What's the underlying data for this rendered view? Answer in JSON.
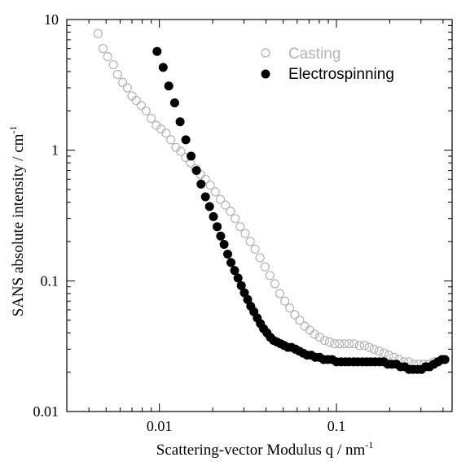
{
  "chart_data": {
    "type": "scatter",
    "xscale": "log",
    "yscale": "log",
    "xlim": [
      0.003,
      0.45
    ],
    "ylim": [
      0.01,
      10
    ],
    "xlabel": "Scattering-vector Modulus q / nm",
    "xlabel_sup": "-1",
    "ylabel": "SANS absolute intensity / cm",
    "ylabel_sup": "-1",
    "x_ticks": [
      {
        "value": 0.01,
        "label": "0.01"
      },
      {
        "value": 0.1,
        "label": "0.1"
      }
    ],
    "y_ticks": [
      {
        "value": 0.01,
        "label": "0.01"
      },
      {
        "value": 0.1,
        "label": "0.1"
      },
      {
        "value": 1,
        "label": "1"
      },
      {
        "value": 10,
        "label": "10"
      }
    ],
    "grid": false,
    "legend_position": "top-right",
    "series": [
      {
        "name": "Casting",
        "marker": "open-circle",
        "color": "#b3b3b3",
        "x": [
          0.0045,
          0.0048,
          0.0051,
          0.0055,
          0.0058,
          0.0062,
          0.0066,
          0.007,
          0.0074,
          0.0079,
          0.0084,
          0.009,
          0.0096,
          0.0102,
          0.0109,
          0.0116,
          0.0124,
          0.0132,
          0.0141,
          0.015,
          0.016,
          0.0171,
          0.0182,
          0.0194,
          0.0207,
          0.0221,
          0.0236,
          0.0252,
          0.0268,
          0.0286,
          0.0305,
          0.0326,
          0.0347,
          0.037,
          0.0395,
          0.0421,
          0.0449,
          0.0479,
          0.0511,
          0.0545,
          0.0582,
          0.062,
          0.0662,
          0.0706,
          0.0753,
          0.0803,
          0.0857,
          0.0914,
          0.0975,
          0.104,
          0.111,
          0.118,
          0.126,
          0.135,
          0.144,
          0.153,
          0.163,
          0.174,
          0.186,
          0.198,
          0.211,
          0.225,
          0.24,
          0.256,
          0.273,
          0.291,
          0.311,
          0.332,
          0.354,
          0.377,
          0.402
        ],
        "y": [
          7.8,
          6.0,
          5.2,
          4.5,
          3.8,
          3.3,
          3.0,
          2.6,
          2.4,
          2.2,
          2.0,
          1.75,
          1.55,
          1.45,
          1.35,
          1.2,
          1.05,
          0.98,
          0.88,
          0.8,
          0.72,
          0.65,
          0.6,
          0.54,
          0.48,
          0.42,
          0.38,
          0.34,
          0.3,
          0.26,
          0.23,
          0.2,
          0.175,
          0.15,
          0.128,
          0.11,
          0.095,
          0.08,
          0.07,
          0.062,
          0.055,
          0.05,
          0.045,
          0.042,
          0.039,
          0.037,
          0.035,
          0.034,
          0.033,
          0.033,
          0.033,
          0.033,
          0.033,
          0.032,
          0.032,
          0.031,
          0.03,
          0.029,
          0.028,
          0.027,
          0.026,
          0.025,
          0.024,
          0.024,
          0.023,
          0.023,
          0.023,
          0.023,
          0.024,
          0.024,
          0.025
        ]
      },
      {
        "name": "Electrospinning",
        "marker": "filled-circle",
        "color": "#000000",
        "x": [
          0.0097,
          0.0105,
          0.0113,
          0.0122,
          0.0131,
          0.0141,
          0.0151,
          0.0162,
          0.0172,
          0.0182,
          0.0192,
          0.0202,
          0.0212,
          0.0222,
          0.0232,
          0.0243,
          0.0254,
          0.0266,
          0.0278,
          0.029,
          0.0302,
          0.0315,
          0.0328,
          0.0342,
          0.0357,
          0.0372,
          0.0388,
          0.0405,
          0.0423,
          0.0442,
          0.0462,
          0.0484,
          0.0507,
          0.0532,
          0.0558,
          0.0586,
          0.0616,
          0.0648,
          0.0683,
          0.072,
          0.076,
          0.0802,
          0.0847,
          0.0895,
          0.0946,
          0.1,
          0.106,
          0.112,
          0.118,
          0.125,
          0.132,
          0.14,
          0.148,
          0.156,
          0.165,
          0.175,
          0.185,
          0.195,
          0.206,
          0.218,
          0.23,
          0.243,
          0.257,
          0.271,
          0.286,
          0.302,
          0.319,
          0.336,
          0.355,
          0.374,
          0.394,
          0.41
        ],
        "y": [
          5.7,
          4.3,
          3.1,
          2.3,
          1.65,
          1.2,
          0.9,
          0.7,
          0.55,
          0.44,
          0.37,
          0.31,
          0.26,
          0.22,
          0.19,
          0.16,
          0.138,
          0.12,
          0.105,
          0.092,
          0.081,
          0.072,
          0.064,
          0.058,
          0.052,
          0.047,
          0.043,
          0.04,
          0.037,
          0.035,
          0.034,
          0.033,
          0.032,
          0.031,
          0.031,
          0.03,
          0.029,
          0.028,
          0.027,
          0.027,
          0.026,
          0.026,
          0.025,
          0.025,
          0.025,
          0.024,
          0.024,
          0.024,
          0.024,
          0.024,
          0.024,
          0.024,
          0.024,
          0.024,
          0.024,
          0.024,
          0.024,
          0.023,
          0.023,
          0.023,
          0.022,
          0.022,
          0.021,
          0.021,
          0.021,
          0.021,
          0.022,
          0.022,
          0.023,
          0.024,
          0.025,
          0.025
        ]
      }
    ]
  }
}
